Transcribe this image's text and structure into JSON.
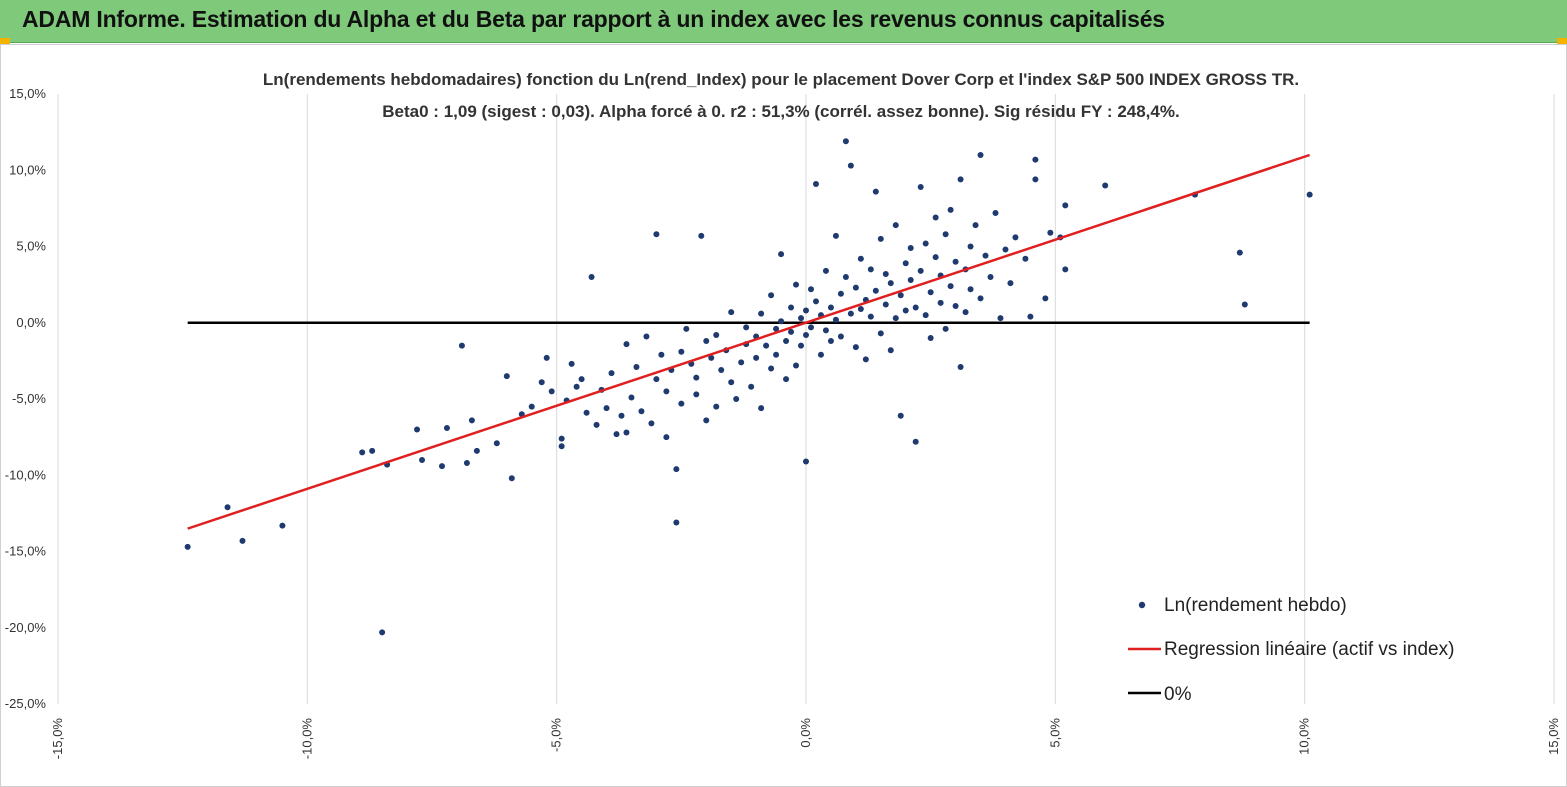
{
  "header": {
    "title": "ADAM Informe. Estimation du Alpha et du Beta par rapport à un index avec les revenus connus capitalisés"
  },
  "colors": {
    "header_bg": "#7fc97a",
    "corner_accent": "#f2b400",
    "points": "#1f3a6e",
    "regression": "#e02020",
    "zero_line": "#000000"
  },
  "chart_data": {
    "type": "scatter",
    "title": "Ln(rendements hebdomadaires) fonction du Ln(rend_Index) pour le placement Dover Corp et l'index S&P 500 INDEX GROSS TR.",
    "subtitle": "Beta0 : 1,09  (sigest : 0,03).  Alpha forcé à 0. r2 : 51,3% (corrél. assez bonne). Sig résidu FY : 248,4%.",
    "xlim": [
      -15,
      15
    ],
    "ylim": [
      -25,
      15
    ],
    "x_ticks": [
      "-15,0%",
      "-10,0%",
      "-5,0%",
      "0,0%",
      "5,0%",
      "10,0%",
      "15,0%"
    ],
    "y_ticks": [
      "15,0%",
      "10,0%",
      "5,0%",
      "0,0%",
      "-5,0%",
      "-10,0%",
      "-15,0%",
      "-20,0%",
      "-25,0%"
    ],
    "grid": "vertical",
    "legend_position": "bottom-right",
    "series": [
      {
        "name": "Ln(rendement hebdo)",
        "kind": "scatter",
        "points": [
          [
            -12.4,
            -14.7
          ],
          [
            -11.6,
            -12.1
          ],
          [
            -11.3,
            -14.3
          ],
          [
            -10.5,
            -13.3
          ],
          [
            -8.9,
            -8.5
          ],
          [
            -8.7,
            -8.4
          ],
          [
            -8.4,
            -9.3
          ],
          [
            -8.5,
            -20.3
          ],
          [
            -7.8,
            -7.0
          ],
          [
            -7.7,
            -9.0
          ],
          [
            -7.3,
            -9.4
          ],
          [
            -7.2,
            -6.9
          ],
          [
            -6.9,
            -1.5
          ],
          [
            -6.8,
            -9.2
          ],
          [
            -6.7,
            -6.4
          ],
          [
            -6.6,
            -8.4
          ],
          [
            -6.2,
            -7.9
          ],
          [
            -6.0,
            -3.5
          ],
          [
            -5.9,
            -10.2
          ],
          [
            -5.7,
            -6.0
          ],
          [
            -5.5,
            -5.5
          ],
          [
            -5.3,
            -3.9
          ],
          [
            -5.2,
            -2.3
          ],
          [
            -5.1,
            -4.5
          ],
          [
            -4.9,
            -7.6
          ],
          [
            -4.9,
            -8.1
          ],
          [
            -4.8,
            -5.1
          ],
          [
            -4.7,
            -2.7
          ],
          [
            -4.6,
            -4.2
          ],
          [
            -4.5,
            -3.7
          ],
          [
            -4.4,
            -5.9
          ],
          [
            -4.3,
            3.0
          ],
          [
            -4.2,
            -6.7
          ],
          [
            -4.1,
            -4.4
          ],
          [
            -4.0,
            -5.6
          ],
          [
            -3.9,
            -3.3
          ],
          [
            -3.8,
            -7.3
          ],
          [
            -3.7,
            -6.1
          ],
          [
            -3.6,
            -1.4
          ],
          [
            -3.6,
            -7.2
          ],
          [
            -3.5,
            -4.9
          ],
          [
            -3.4,
            -2.9
          ],
          [
            -3.3,
            -5.8
          ],
          [
            -3.2,
            -0.9
          ],
          [
            -3.1,
            -6.6
          ],
          [
            -3.0,
            5.8
          ],
          [
            -3.0,
            -3.7
          ],
          [
            -2.9,
            -2.1
          ],
          [
            -2.8,
            -7.5
          ],
          [
            -2.8,
            -4.5
          ],
          [
            -2.7,
            -3.1
          ],
          [
            -2.6,
            -9.6
          ],
          [
            -2.6,
            -13.1
          ],
          [
            -2.5,
            -1.9
          ],
          [
            -2.5,
            -5.3
          ],
          [
            -2.4,
            -0.4
          ],
          [
            -2.3,
            -2.7
          ],
          [
            -2.2,
            -4.7
          ],
          [
            -2.2,
            -3.6
          ],
          [
            -2.1,
            5.7
          ],
          [
            -2.0,
            -1.2
          ],
          [
            -2.0,
            -6.4
          ],
          [
            -1.9,
            -2.3
          ],
          [
            -1.8,
            -5.5
          ],
          [
            -1.8,
            -0.8
          ],
          [
            -1.7,
            -3.1
          ],
          [
            -1.6,
            -1.8
          ],
          [
            -1.5,
            -3.9
          ],
          [
            -1.5,
            0.7
          ],
          [
            -1.4,
            -5.0
          ],
          [
            -1.3,
            -2.6
          ],
          [
            -1.2,
            -0.3
          ],
          [
            -1.2,
            -1.4
          ],
          [
            -1.1,
            -4.2
          ],
          [
            -1.0,
            -0.9
          ],
          [
            -1.0,
            -2.3
          ],
          [
            -0.9,
            -5.6
          ],
          [
            -0.9,
            0.6
          ],
          [
            -0.8,
            -1.5
          ],
          [
            -0.7,
            -3.0
          ],
          [
            -0.7,
            1.8
          ],
          [
            -0.6,
            -0.4
          ],
          [
            -0.6,
            -2.1
          ],
          [
            -0.5,
            4.5
          ],
          [
            -0.5,
            0.1
          ],
          [
            -0.4,
            -1.2
          ],
          [
            -0.4,
            -3.7
          ],
          [
            -0.3,
            1.0
          ],
          [
            -0.3,
            -0.6
          ],
          [
            -0.2,
            -2.8
          ],
          [
            -0.2,
            2.5
          ],
          [
            -0.1,
            0.3
          ],
          [
            -0.1,
            -1.5
          ],
          [
            0.0,
            -9.1
          ],
          [
            0.0,
            0.8
          ],
          [
            0.0,
            -0.8
          ],
          [
            0.1,
            2.2
          ],
          [
            0.1,
            -0.3
          ],
          [
            0.2,
            1.4
          ],
          [
            0.2,
            9.1
          ],
          [
            0.3,
            -2.1
          ],
          [
            0.3,
            0.5
          ],
          [
            0.4,
            3.4
          ],
          [
            0.4,
            -0.5
          ],
          [
            0.5,
            1.0
          ],
          [
            0.5,
            -1.2
          ],
          [
            0.6,
            5.7
          ],
          [
            0.6,
            0.2
          ],
          [
            0.7,
            1.9
          ],
          [
            0.7,
            -0.9
          ],
          [
            0.8,
            11.9
          ],
          [
            0.8,
            3.0
          ],
          [
            0.9,
            10.3
          ],
          [
            0.9,
            0.6
          ],
          [
            1.0,
            2.3
          ],
          [
            1.0,
            -1.6
          ],
          [
            1.1,
            4.2
          ],
          [
            1.1,
            0.9
          ],
          [
            1.2,
            1.5
          ],
          [
            1.2,
            -2.4
          ],
          [
            1.3,
            3.5
          ],
          [
            1.3,
            0.4
          ],
          [
            1.4,
            8.6
          ],
          [
            1.4,
            2.1
          ],
          [
            1.5,
            -0.7
          ],
          [
            1.5,
            5.5
          ],
          [
            1.6,
            1.2
          ],
          [
            1.6,
            3.2
          ],
          [
            1.7,
            -1.8
          ],
          [
            1.7,
            2.6
          ],
          [
            1.8,
            0.3
          ],
          [
            1.8,
            6.4
          ],
          [
            1.9,
            1.8
          ],
          [
            1.9,
            -6.1
          ],
          [
            2.0,
            3.9
          ],
          [
            2.0,
            0.8
          ],
          [
            2.1,
            2.8
          ],
          [
            2.1,
            4.9
          ],
          [
            2.2,
            1.0
          ],
          [
            2.2,
            -7.8
          ],
          [
            2.3,
            8.9
          ],
          [
            2.3,
            3.4
          ],
          [
            2.4,
            0.5
          ],
          [
            2.4,
            5.2
          ],
          [
            2.5,
            2.0
          ],
          [
            2.5,
            -1.0
          ],
          [
            2.6,
            4.3
          ],
          [
            2.6,
            6.9
          ],
          [
            2.7,
            1.3
          ],
          [
            2.7,
            3.1
          ],
          [
            2.8,
            5.8
          ],
          [
            2.8,
            -0.4
          ],
          [
            2.9,
            2.4
          ],
          [
            2.9,
            7.4
          ],
          [
            3.0,
            1.1
          ],
          [
            3.0,
            4.0
          ],
          [
            3.1,
            -2.9
          ],
          [
            3.1,
            9.4
          ],
          [
            3.2,
            3.5
          ],
          [
            3.2,
            0.7
          ],
          [
            3.3,
            5.0
          ],
          [
            3.3,
            2.2
          ],
          [
            3.4,
            6.4
          ],
          [
            3.5,
            11.0
          ],
          [
            3.5,
            1.6
          ],
          [
            3.6,
            4.4
          ],
          [
            3.7,
            3.0
          ],
          [
            3.8,
            7.2
          ],
          [
            3.9,
            0.3
          ],
          [
            4.0,
            4.8
          ],
          [
            4.1,
            2.6
          ],
          [
            4.2,
            5.6
          ],
          [
            4.4,
            4.2
          ],
          [
            4.5,
            0.4
          ],
          [
            4.6,
            9.4
          ],
          [
            4.6,
            10.7
          ],
          [
            4.8,
            1.6
          ],
          [
            4.9,
            5.9
          ],
          [
            5.1,
            5.6
          ],
          [
            5.2,
            7.7
          ],
          [
            5.2,
            3.5
          ],
          [
            6.0,
            9.0
          ],
          [
            7.8,
            8.4
          ],
          [
            8.7,
            4.6
          ],
          [
            8.8,
            1.2
          ],
          [
            10.1,
            8.4
          ]
        ]
      },
      {
        "name": "Regression linéaire (actif vs index)",
        "kind": "line",
        "points": [
          [
            -12.4,
            -13.5
          ],
          [
            10.1,
            11.0
          ]
        ]
      },
      {
        "name": "0%",
        "kind": "line",
        "points": [
          [
            -12.4,
            0
          ],
          [
            10.1,
            0
          ]
        ]
      }
    ]
  }
}
